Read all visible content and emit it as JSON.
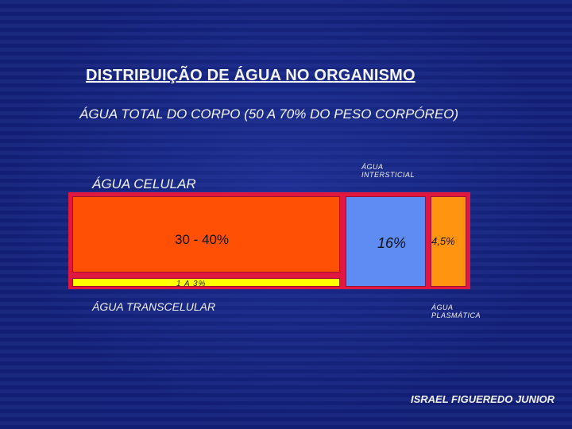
{
  "title": "DISTRIBUIÇÃO DE  ÁGUA NO ORGANISMO",
  "subtitle": "ÁGUA TOTAL DO CORPO (50 A 70% DO PESO CORPÓREO)",
  "labels": {
    "celular": "ÁGUA CELULAR",
    "intersticial": "ÁGUA INTERSTICIAL",
    "transcelular": "ÁGUA TRANSCELULAR",
    "plasmatica": "ÁGUA PLASMÁTICA"
  },
  "values": {
    "celular": "30 - 40%",
    "transcelular": "1 A 3%",
    "intersticial": "16%",
    "plasmatica": "4,5%"
  },
  "author": "ISRAEL FIGUEREDO JUNIOR",
  "colors": {
    "background": "#12207a",
    "frame": "#e0173f",
    "celular": "#ff5005",
    "transcelular": "#ffff00",
    "intersticial": "#5e8cf2",
    "plasmatica": "#ff9410"
  }
}
